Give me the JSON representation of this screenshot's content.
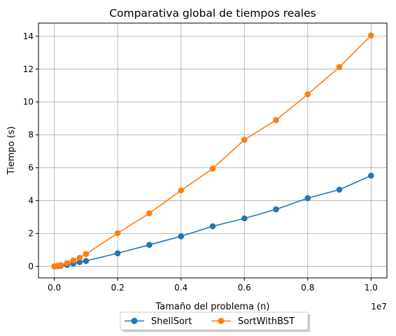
{
  "chart_data": {
    "type": "line",
    "title": "Comparativa global de tiempos reales",
    "xlabel": "Tamaño del problema (n)",
    "ylabel": "Tiempo (s)",
    "x_offset_label": "1e7",
    "xlim": [
      -0.05,
      1.05
    ],
    "ylim": [
      -0.7,
      14.8
    ],
    "x_ticks": [
      0.0,
      0.2,
      0.4,
      0.6,
      0.8,
      1.0
    ],
    "x_tick_labels": [
      "0.0",
      "0.2",
      "0.4",
      "0.6",
      "0.8",
      "1.0"
    ],
    "y_ticks": [
      0,
      2,
      4,
      6,
      8,
      10,
      12,
      14
    ],
    "y_tick_labels": [
      "0",
      "2",
      "4",
      "6",
      "8",
      "10",
      "12",
      "14"
    ],
    "grid": true,
    "legend_position": "below-center",
    "x": [
      0.0,
      0.01,
      0.02,
      0.04,
      0.06,
      0.08,
      0.1,
      0.2,
      0.3,
      0.4,
      0.5,
      0.6,
      0.7,
      0.8,
      0.9,
      1.0
    ],
    "series": [
      {
        "name": "ShellSort",
        "color": "#1f77b4",
        "values": [
          0.0,
          0.02,
          0.04,
          0.09,
          0.17,
          0.26,
          0.33,
          0.8,
          1.31,
          1.83,
          2.44,
          2.92,
          3.47,
          4.15,
          4.67,
          5.52
        ]
      },
      {
        "name": "SortWithBST",
        "color": "#ff7f0e",
        "values": [
          0.0,
          0.04,
          0.08,
          0.2,
          0.36,
          0.53,
          0.75,
          2.02,
          3.23,
          4.62,
          5.95,
          7.7,
          8.9,
          10.47,
          12.12,
          14.05
        ]
      }
    ]
  }
}
